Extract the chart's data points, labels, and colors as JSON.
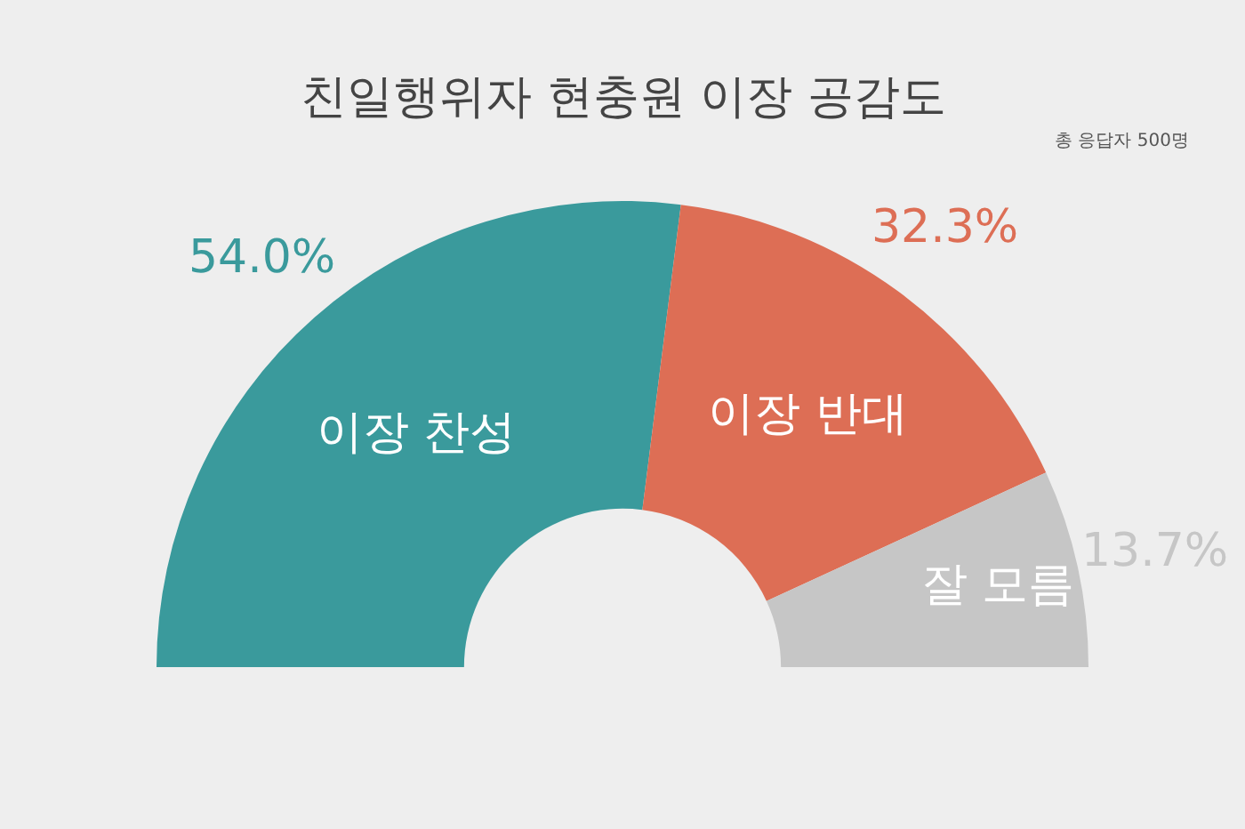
{
  "chart_data": {
    "type": "donut",
    "title": "친일행위자 현충원 이장 공감도",
    "subtitle": "총 응답자 500명",
    "categories": [
      "이장 찬성",
      "이장 반대",
      "잘 모름"
    ],
    "values": [
      54.0,
      32.3,
      13.7
    ],
    "colors": [
      "#3a9a9c",
      "#dd6e55",
      "#c6c6c6"
    ],
    "value_labels": [
      "54.0%",
      "32.3%",
      "13.7%"
    ],
    "legend": false
  }
}
